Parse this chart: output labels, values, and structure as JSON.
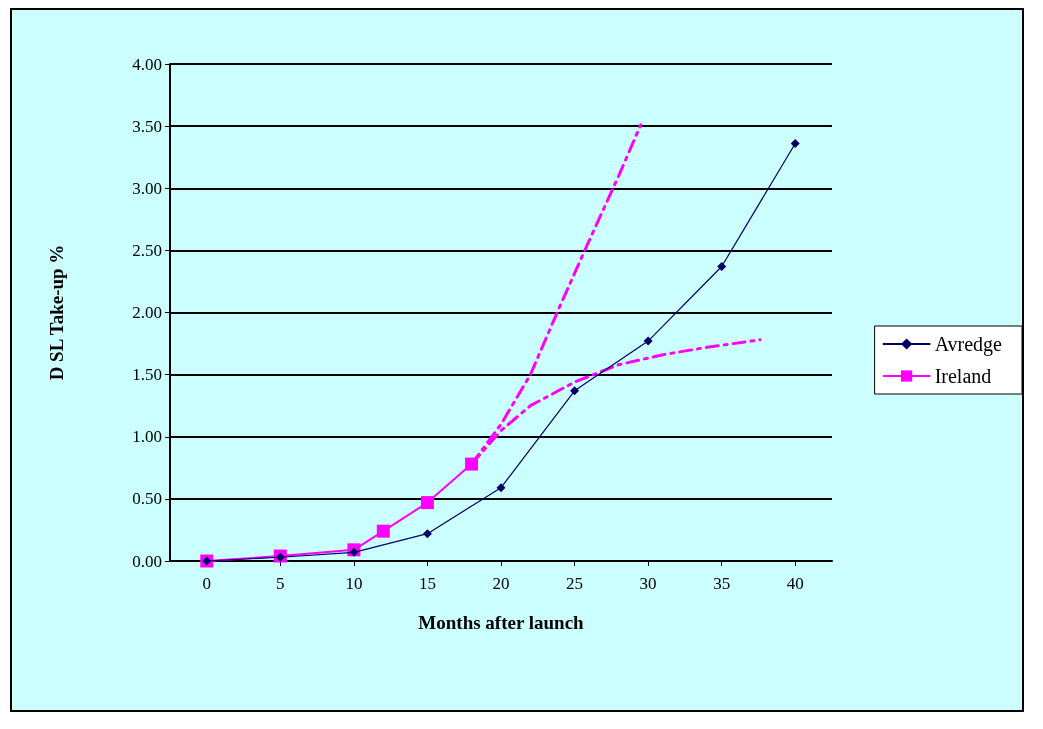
{
  "chart_data": {
    "type": "line",
    "xlabel": "Months after launch",
    "ylabel": "D SL Take-up %",
    "xlim": [
      -2.5,
      42.5
    ],
    "xticks": [
      0,
      5,
      10,
      15,
      20,
      25,
      30,
      35,
      40
    ],
    "ylim": [
      0,
      4
    ],
    "yticks": [
      {
        "value": 0,
        "label": "0.00"
      },
      {
        "value": 0.5,
        "label": "0.50"
      },
      {
        "value": 1,
        "label": "1.00"
      },
      {
        "value": 1.5,
        "label": "1.50"
      },
      {
        "value": 2,
        "label": "2.00"
      },
      {
        "value": 2.5,
        "label": "2.50"
      },
      {
        "value": 3,
        "label": "3.00"
      },
      {
        "value": 3.5,
        "label": "3.50"
      },
      {
        "value": 4,
        "label": "4.00"
      }
    ],
    "grid": "y",
    "legend": "right",
    "series": [
      {
        "name": "Avredge",
        "color": "#000066",
        "marker": "diamond",
        "x": [
          0,
          5,
          10,
          15,
          20,
          25,
          30,
          35,
          40
        ],
        "values": [
          0,
          0.03,
          0.07,
          0.22,
          0.59,
          1.37,
          1.77,
          2.37,
          3.36
        ]
      },
      {
        "name": "Ireland",
        "color": "#ff00ff",
        "marker": "square",
        "x": [
          0,
          5,
          10,
          12,
          15,
          18
        ],
        "values": [
          0,
          0.04,
          0.09,
          0.24,
          0.47,
          0.78
        ]
      },
      {
        "color": "#ff00ff",
        "marker": "none",
        "line_style": "dashed",
        "x": [
          18,
          20,
          22,
          24,
          26,
          28,
          29.5
        ],
        "values": [
          0.78,
          1.1,
          1.5,
          2.05,
          2.58,
          3.1,
          3.51
        ]
      },
      {
        "color": "#ff00ff",
        "marker": "none",
        "line_style": "dashed",
        "x": [
          18,
          20,
          22,
          25,
          28,
          31,
          34,
          37.6
        ],
        "values": [
          0.78,
          1.05,
          1.25,
          1.44,
          1.58,
          1.66,
          1.72,
          1.78
        ]
      }
    ]
  }
}
